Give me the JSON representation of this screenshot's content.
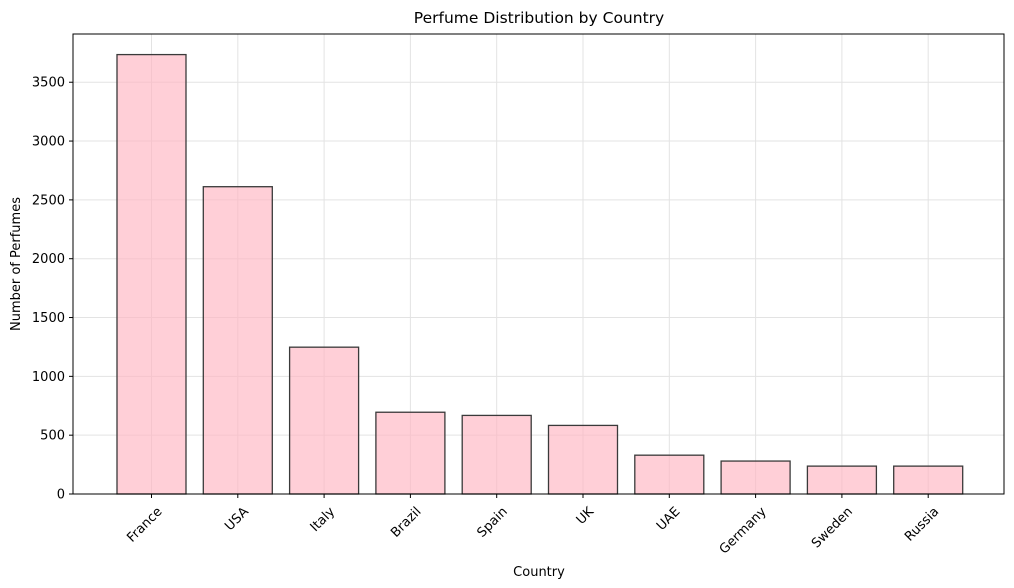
{
  "chart_data": {
    "type": "bar",
    "title": "Perfume Distribution by Country",
    "xlabel": "Country",
    "ylabel": "Number of Perfumes",
    "categories": [
      "France",
      "USA",
      "Italy",
      "Brazil",
      "Spain",
      "UK",
      "UAE",
      "Germany",
      "Sweden",
      "Russia"
    ],
    "values": [
      3735,
      2612,
      1248,
      695,
      668,
      583,
      330,
      280,
      237,
      237
    ],
    "ylim": [
      0,
      3910
    ],
    "yticks": [
      0,
      500,
      1000,
      1500,
      2000,
      2500,
      3000,
      3500
    ],
    "grid": true,
    "bar_color": "#ffb6c1",
    "bar_edge_color": "#3a3a3a",
    "x_tick_rotation": 45
  }
}
